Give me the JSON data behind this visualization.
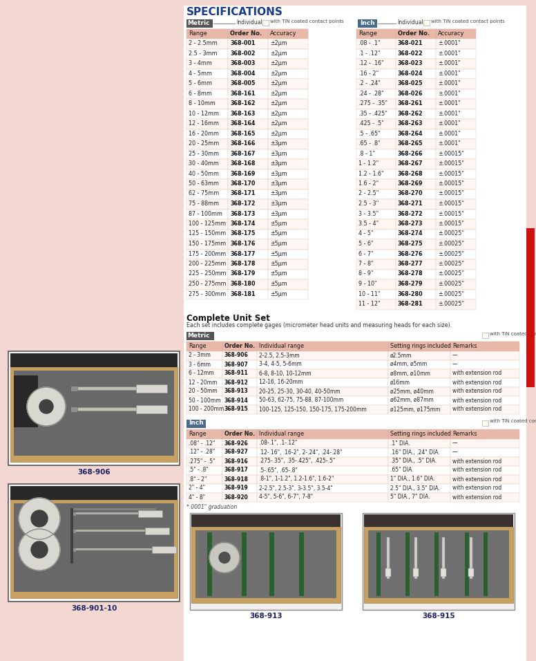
{
  "title": "SPECIFICATIONS",
  "bg_color": "#f2d8d0",
  "white_bg": "#ffffff",
  "header_bg": "#e8b8a8",
  "metric_label_bg": "#555555",
  "inch_label_bg": "#4a6a8a",
  "metric_individual_rows": [
    [
      "2 - 2.5mm",
      "368-001",
      "±2μm"
    ],
    [
      "2.5 - 3mm",
      "368-002",
      "±2μm"
    ],
    [
      "3 - 4mm",
      "368-003",
      "±2μm"
    ],
    [
      "4 - 5mm",
      "368-004",
      "±2μm"
    ],
    [
      "5 - 6mm",
      "368-005",
      "±2μm"
    ],
    [
      "6 - 8mm",
      "368-161",
      "±2μm"
    ],
    [
      "8 - 10mm",
      "368-162",
      "±2μm"
    ],
    [
      "10 - 12mm",
      "368-163",
      "±2μm"
    ],
    [
      "12 - 16mm",
      "368-164",
      "±2μm"
    ],
    [
      "16 - 20mm",
      "368-165",
      "±2μm"
    ],
    [
      "20 - 25mm",
      "368-166",
      "±3μm"
    ],
    [
      "25 - 30mm",
      "368-167",
      "±3μm"
    ],
    [
      "30 - 40mm",
      "368-168",
      "±3μm"
    ],
    [
      "40 - 50mm",
      "368-169",
      "±3μm"
    ],
    [
      "50 - 63mm",
      "368-170",
      "±3μm"
    ],
    [
      "62 - 75mm",
      "368-171",
      "±3μm"
    ],
    [
      "75 - 88mm",
      "368-172",
      "±3μm"
    ],
    [
      "87 - 100mm",
      "368-173",
      "±3μm"
    ],
    [
      "100 - 125mm",
      "368-174",
      "±5μm"
    ],
    [
      "125 - 150mm",
      "368-175",
      "±5μm"
    ],
    [
      "150 - 175mm",
      "368-176",
      "±5μm"
    ],
    [
      "175 - 200mm",
      "368-177",
      "±5μm"
    ],
    [
      "200 - 225mm",
      "368-178",
      "±5μm"
    ],
    [
      "225 - 250mm",
      "368-179",
      "±5μm"
    ],
    [
      "250 - 275mm",
      "368-180",
      "±5μm"
    ],
    [
      "275 - 300mm",
      "368-181",
      "±5μm"
    ]
  ],
  "inch_individual_rows": [
    [
      ".08 - .1\"",
      "368-021",
      "±.0001\""
    ],
    [
      ".1 - .12\"",
      "368-022",
      "±.0001\""
    ],
    [
      ".12 - .16\"",
      "368-023",
      "±.0001\""
    ],
    [
      ".16 - 2\"",
      "368-024",
      "±.0001\""
    ],
    [
      ".2 - .24\"",
      "368-025",
      "±.0001\""
    ],
    [
      ".24 - .28\"",
      "368-026",
      "±.0001\""
    ],
    [
      ".275 - .35\"",
      "368-261",
      "±.0001\""
    ],
    [
      ".35 - .425\"",
      "368-262",
      "±.0001\""
    ],
    [
      ".425 - .5\"",
      "368-263",
      "±.0001\""
    ],
    [
      ".5 - .65\"",
      "368-264",
      "±.0001\""
    ],
    [
      ".65 - .8\"",
      "368-265",
      "±.0001\""
    ],
    [
      ".8 - 1\"",
      "368-266",
      "±.00015\""
    ],
    [
      "1 - 1.2\"",
      "368-267",
      "±.00015\""
    ],
    [
      "1.2 - 1.6\"",
      "368-268",
      "±.00015\""
    ],
    [
      "1.6 - 2\"",
      "368-269",
      "±.00015\""
    ],
    [
      "2 - 2.5\"",
      "368-270",
      "±.00015\""
    ],
    [
      "2.5 - 3\"",
      "368-271",
      "±.00015\""
    ],
    [
      "3 - 3.5\"",
      "368-272",
      "±.00015\""
    ],
    [
      "3.5 - 4\"",
      "368-273",
      "±.00015\""
    ],
    [
      "4 - 5\"",
      "368-274",
      "±.00025\""
    ],
    [
      "5 - 6\"",
      "368-275",
      "±.00025\""
    ],
    [
      "6 - 7\"",
      "368-276",
      "±.00025\""
    ],
    [
      "7 - 8\"",
      "368-277",
      "±.00025\""
    ],
    [
      "8 - 9\"",
      "368-278",
      "±.00025\""
    ],
    [
      "9 - 10\"",
      "368-279",
      "±.00025\""
    ],
    [
      "10 - 11\"",
      "368-280",
      "±.00025\""
    ],
    [
      "11 - 12\"",
      "368-281",
      "±.00025\""
    ]
  ],
  "complete_set_title": "Complete Unit Set",
  "complete_set_subtitle": "Each set includes complete gages (micrometer head units and measuring heads for each size).",
  "metric_complete_rows": [
    [
      "2 - 3mm",
      "368-906",
      "2-2.5, 2.5-3mm",
      "ø2.5mm",
      "—"
    ],
    [
      "3 - 6mm",
      "368-907",
      "3-4, 4-5, 5-6mm",
      "ø4mm, ø5mm",
      "—"
    ],
    [
      "6 - 12mm",
      "368-911",
      "6-8, 8-10, 10-12mm",
      "ø8mm, ø10mm",
      "with extension rod"
    ],
    [
      "12 - 20mm",
      "368-912",
      "12-16, 16-20mm",
      "ø16mm",
      "with extension rod"
    ],
    [
      "20 - 50mm",
      "368-913",
      "20-25, 25-30, 30-40, 40-50mm",
      "ø25mm, ø40mm",
      "with extension rod"
    ],
    [
      "50 - 100mm",
      "368-914",
      "50-63, 62-75, 75-88, 87-100mm",
      "ø62mm, ø87mm",
      "with extension rod"
    ],
    [
      "100 - 200mm",
      "368-915",
      "100-125, 125-150, 150-175, 175-200mm",
      "ø125mm, ø175mm",
      "with extension rod"
    ]
  ],
  "inch_complete_rows": [
    [
      ".08\" - .12\"",
      "368-926",
      ".08-.1\", .1-.12\"",
      ".1\" DIA.",
      "—"
    ],
    [
      ".12\" - .28\"",
      "368-927",
      ".12-.16\", .16-2\", 2-.24\", .24-.28\"",
      ".16\" DIA., .24\" DIA.",
      "—"
    ],
    [
      ".275\" - .5\"",
      "368-916",
      ".275-.35\", .35-.425\", .425-.5\"",
      ".35\" DIA., .5\" DIA.",
      "with extension rod"
    ],
    [
      ".5\" - .8\"",
      "368-917",
      ".5-.65\", .65-.8\"",
      ".65\" DIA.",
      "with extension rod"
    ],
    [
      ".8\" - 2\"",
      "368-918",
      ".8-1\", 1-1.2\", 1.2-1.6\", 1.6-2\"",
      "1\" DIA., 1.6\" DIA.",
      "with extension rod"
    ],
    [
      "2\" - 4\"",
      "368-919",
      "2-2.5\", 2.5-3\", 3-3.5\", 3.5-4\"",
      "2.5\" DIA., 3.5\" DIA.",
      "with extension rod"
    ],
    [
      "4\" - 8\"",
      "368-920",
      "4-5\", 5-6\", 6-7\", 7-8\"",
      "5\" DIA., 7\" DIA.",
      "with extension rod"
    ]
  ],
  "footnote": "*.0001\" graduation",
  "label_906": "368-906",
  "label_901": "368-901-10",
  "label_913": "368-913",
  "label_915": "368-915"
}
